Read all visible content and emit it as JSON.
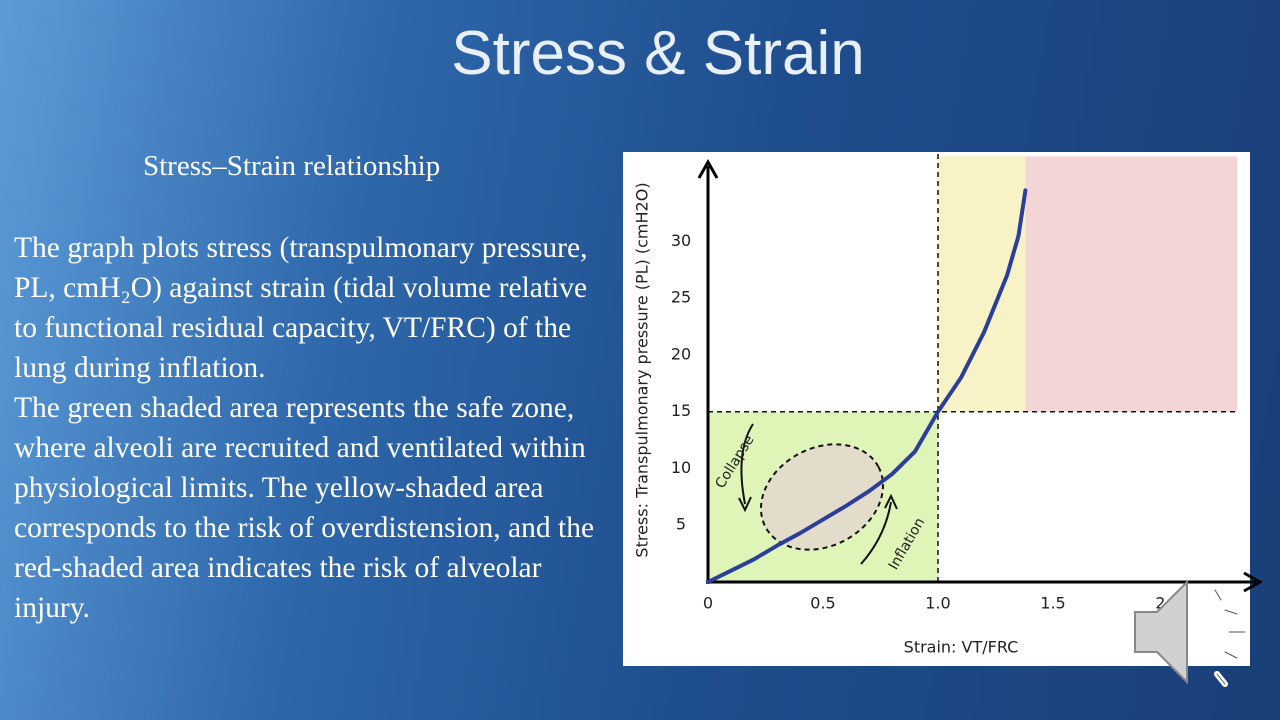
{
  "slide": {
    "title": "Stress & Strain",
    "subtitle": "Stress–Strain relationship",
    "paragraphs": [
      "The graph plots stress (transpulmonary pressure, PL, cmH₂O) against strain (tidal volume relative to functional residual capacity, VT/FRC) of the lung during inflation.",
      "The green shaded area represents the safe zone, where alveoli are recruited and ventilated within physiological limits. The yellow-shaded area corresponds to the risk of overdistension, and the red-shaded area indicates the risk of alveolar injury."
    ]
  },
  "chart_data": {
    "type": "line",
    "xlabel": "Strain: VT/FRC",
    "ylabel": "Stress: Transpulmonary pressure (PL) (cmH2O)",
    "x": [
      0,
      0.1,
      0.2,
      0.3,
      0.4,
      0.5,
      0.6,
      0.7,
      0.8,
      0.9,
      1.0,
      1.1,
      1.2,
      1.3,
      1.35,
      1.38
    ],
    "values": [
      0,
      1,
      2,
      3.2,
      4.3,
      5.5,
      6.7,
      8,
      9.5,
      11.5,
      15,
      18,
      22,
      27,
      30.5,
      34.5
    ],
    "color": "#2b3f9a",
    "xlim": [
      0,
      2.4
    ],
    "ylim": [
      0,
      37
    ],
    "xticks": [
      0,
      0.5,
      {
        "value": 1,
        "label": "1.0"
      },
      1.5,
      {
        "value": 2,
        "label": "2.0"
      }
    ],
    "yticks": [
      5,
      10,
      15,
      20,
      25,
      30
    ],
    "grid": false,
    "regions": [
      {
        "x": [
          0,
          1
        ],
        "y": [
          0,
          15
        ],
        "color": "#dff5b8"
      },
      {
        "x": [
          1,
          1.38
        ],
        "y": [
          15,
          37.5
        ],
        "color": "#f8f3c6"
      },
      {
        "x": [
          1.38,
          2.3
        ],
        "y": [
          15,
          37.5
        ],
        "color": "#f2d5d4"
      }
    ],
    "thresholds": {
      "x": 1,
      "y": 15
    },
    "annotations": [
      "Collapse",
      "Inflation"
    ]
  }
}
